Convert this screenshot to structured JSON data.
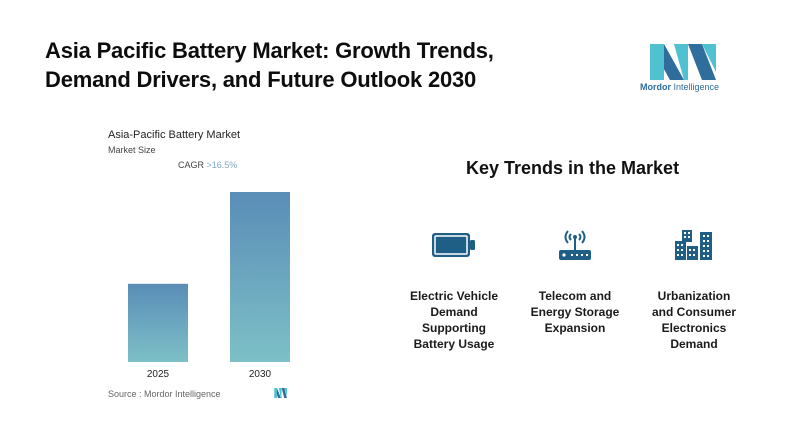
{
  "header": {
    "title_line1": "Asia Pacific Battery Market: Growth Trends,",
    "title_line2": "Demand Drivers, and Future Outlook 2030"
  },
  "brand": {
    "name_bold": "Mordor",
    "name_rest": " Intelligence",
    "logo_icon": "mordor-intelligence-logo",
    "colors": {
      "dark": "#2f6d9c",
      "light": "#4fc1d0"
    }
  },
  "chart_panel": {
    "title": "Asia-Pacific Battery Market",
    "subtitle": "Market Size",
    "cagr_label": "CAGR",
    "cagr_value": ">16.5%",
    "source": "Source :  Mordor Intelligence"
  },
  "chart_data": {
    "type": "bar",
    "title": "Asia-Pacific Battery Market",
    "subtitle": "Market Size",
    "categories": [
      "2025",
      "2030"
    ],
    "values": [
      46,
      100
    ],
    "value_note": "relative bar heights (no y-axis shown); 2030 indexed to 100",
    "annotation": "CAGR >16.5%",
    "xlabel": "",
    "ylabel": "",
    "ylim": [
      0,
      100
    ],
    "grid": false,
    "legend": "none",
    "colors": {
      "top": "#5a8db7",
      "bottom": "#7dc0c7"
    }
  },
  "key_trends": {
    "title": "Key Trends in the Market",
    "icon_color": "#1f5f86",
    "items": [
      {
        "icon": "battery-icon",
        "lines": [
          "Electric Vehicle",
          "Demand",
          "Supporting",
          "Battery Usage"
        ]
      },
      {
        "icon": "router-antenna-icon",
        "lines": [
          "Telecom and",
          "Energy Storage",
          "Expansion"
        ]
      },
      {
        "icon": "city-buildings-icon",
        "lines": [
          "Urbanization",
          "and Consumer",
          "Electronics",
          "Demand"
        ]
      }
    ]
  }
}
